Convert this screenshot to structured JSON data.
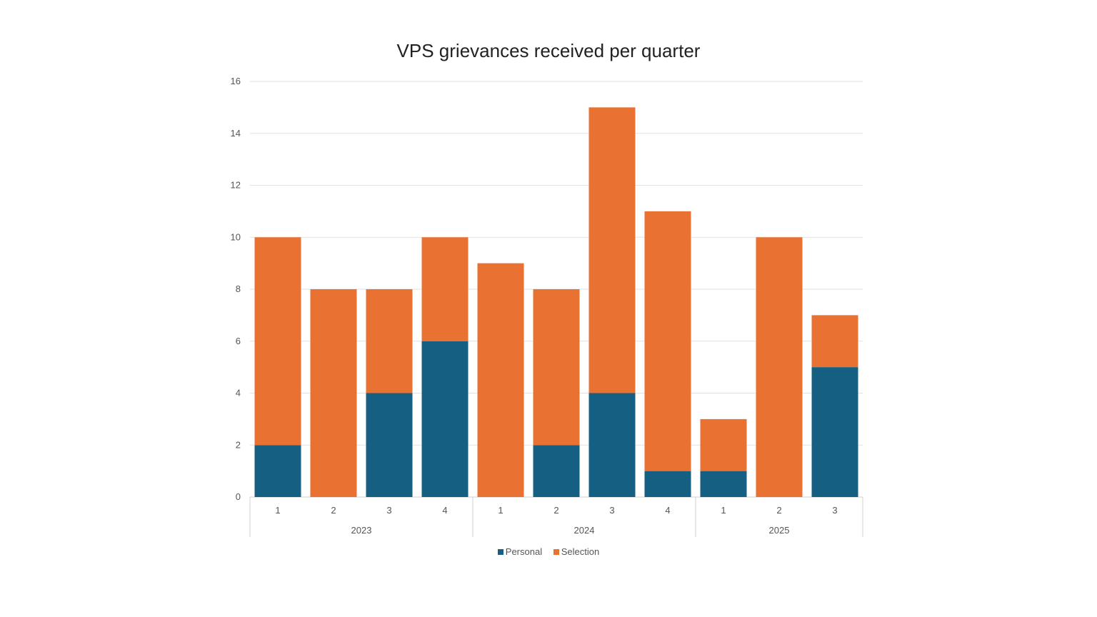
{
  "chart_data": {
    "type": "bar",
    "stacked": true,
    "title": "VPS grievances received per quarter",
    "xlabel": "",
    "ylabel": "",
    "ylim": [
      0,
      16
    ],
    "yticks": [
      0,
      2,
      4,
      6,
      8,
      10,
      12,
      14,
      16
    ],
    "grid": true,
    "legend_position": "bottom",
    "categories": [
      "1",
      "2",
      "3",
      "4",
      "1",
      "2",
      "3",
      "4",
      "1",
      "2",
      "3"
    ],
    "groups": [
      {
        "label": "2023",
        "count": 4
      },
      {
        "label": "2024",
        "count": 4
      },
      {
        "label": "2025",
        "count": 3
      }
    ],
    "series": [
      {
        "name": "Personal",
        "color": "#156082",
        "values": [
          2,
          0,
          4,
          6,
          0,
          2,
          4,
          1,
          1,
          0,
          5
        ]
      },
      {
        "name": "Selection",
        "color": "#E97132",
        "values": [
          8,
          8,
          4,
          4,
          9,
          6,
          11,
          10,
          2,
          10,
          2
        ]
      }
    ]
  }
}
